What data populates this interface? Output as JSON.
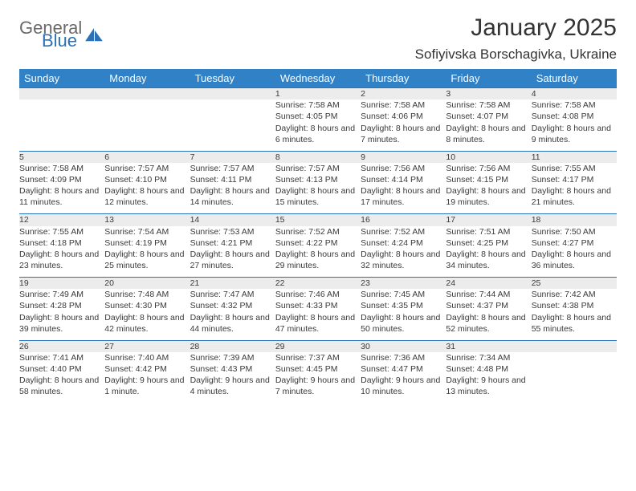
{
  "logo": {
    "word1": "General",
    "word2": "Blue"
  },
  "title": "January 2025",
  "location": "Sofiyivska Borschagivka, Ukraine",
  "colors": {
    "header_bg": "#3081c6",
    "header_text": "#ffffff",
    "daynum_bg": "#ececec",
    "rule": "#2a71b8",
    "logo_gray": "#6a6a6a",
    "logo_blue": "#2a71b8"
  },
  "day_headers": [
    "Sunday",
    "Monday",
    "Tuesday",
    "Wednesday",
    "Thursday",
    "Friday",
    "Saturday"
  ],
  "weeks": [
    {
      "nums": [
        "",
        "",
        "",
        "1",
        "2",
        "3",
        "4"
      ],
      "cells": [
        null,
        null,
        null,
        {
          "sunrise": "7:58 AM",
          "sunset": "4:05 PM",
          "daylight": "8 hours and 6 minutes."
        },
        {
          "sunrise": "7:58 AM",
          "sunset": "4:06 PM",
          "daylight": "8 hours and 7 minutes."
        },
        {
          "sunrise": "7:58 AM",
          "sunset": "4:07 PM",
          "daylight": "8 hours and 8 minutes."
        },
        {
          "sunrise": "7:58 AM",
          "sunset": "4:08 PM",
          "daylight": "8 hours and 9 minutes."
        }
      ]
    },
    {
      "nums": [
        "5",
        "6",
        "7",
        "8",
        "9",
        "10",
        "11"
      ],
      "cells": [
        {
          "sunrise": "7:58 AM",
          "sunset": "4:09 PM",
          "daylight": "8 hours and 11 minutes."
        },
        {
          "sunrise": "7:57 AM",
          "sunset": "4:10 PM",
          "daylight": "8 hours and 12 minutes."
        },
        {
          "sunrise": "7:57 AM",
          "sunset": "4:11 PM",
          "daylight": "8 hours and 14 minutes."
        },
        {
          "sunrise": "7:57 AM",
          "sunset": "4:13 PM",
          "daylight": "8 hours and 15 minutes."
        },
        {
          "sunrise": "7:56 AM",
          "sunset": "4:14 PM",
          "daylight": "8 hours and 17 minutes."
        },
        {
          "sunrise": "7:56 AM",
          "sunset": "4:15 PM",
          "daylight": "8 hours and 19 minutes."
        },
        {
          "sunrise": "7:55 AM",
          "sunset": "4:17 PM",
          "daylight": "8 hours and 21 minutes."
        }
      ]
    },
    {
      "nums": [
        "12",
        "13",
        "14",
        "15",
        "16",
        "17",
        "18"
      ],
      "cells": [
        {
          "sunrise": "7:55 AM",
          "sunset": "4:18 PM",
          "daylight": "8 hours and 23 minutes."
        },
        {
          "sunrise": "7:54 AM",
          "sunset": "4:19 PM",
          "daylight": "8 hours and 25 minutes."
        },
        {
          "sunrise": "7:53 AM",
          "sunset": "4:21 PM",
          "daylight": "8 hours and 27 minutes."
        },
        {
          "sunrise": "7:52 AM",
          "sunset": "4:22 PM",
          "daylight": "8 hours and 29 minutes."
        },
        {
          "sunrise": "7:52 AM",
          "sunset": "4:24 PM",
          "daylight": "8 hours and 32 minutes."
        },
        {
          "sunrise": "7:51 AM",
          "sunset": "4:25 PM",
          "daylight": "8 hours and 34 minutes."
        },
        {
          "sunrise": "7:50 AM",
          "sunset": "4:27 PM",
          "daylight": "8 hours and 36 minutes."
        }
      ]
    },
    {
      "nums": [
        "19",
        "20",
        "21",
        "22",
        "23",
        "24",
        "25"
      ],
      "cells": [
        {
          "sunrise": "7:49 AM",
          "sunset": "4:28 PM",
          "daylight": "8 hours and 39 minutes."
        },
        {
          "sunrise": "7:48 AM",
          "sunset": "4:30 PM",
          "daylight": "8 hours and 42 minutes."
        },
        {
          "sunrise": "7:47 AM",
          "sunset": "4:32 PM",
          "daylight": "8 hours and 44 minutes."
        },
        {
          "sunrise": "7:46 AM",
          "sunset": "4:33 PM",
          "daylight": "8 hours and 47 minutes."
        },
        {
          "sunrise": "7:45 AM",
          "sunset": "4:35 PM",
          "daylight": "8 hours and 50 minutes."
        },
        {
          "sunrise": "7:44 AM",
          "sunset": "4:37 PM",
          "daylight": "8 hours and 52 minutes."
        },
        {
          "sunrise": "7:42 AM",
          "sunset": "4:38 PM",
          "daylight": "8 hours and 55 minutes."
        }
      ]
    },
    {
      "nums": [
        "26",
        "27",
        "28",
        "29",
        "30",
        "31",
        ""
      ],
      "cells": [
        {
          "sunrise": "7:41 AM",
          "sunset": "4:40 PM",
          "daylight": "8 hours and 58 minutes."
        },
        {
          "sunrise": "7:40 AM",
          "sunset": "4:42 PM",
          "daylight": "9 hours and 1 minute."
        },
        {
          "sunrise": "7:39 AM",
          "sunset": "4:43 PM",
          "daylight": "9 hours and 4 minutes."
        },
        {
          "sunrise": "7:37 AM",
          "sunset": "4:45 PM",
          "daylight": "9 hours and 7 minutes."
        },
        {
          "sunrise": "7:36 AM",
          "sunset": "4:47 PM",
          "daylight": "9 hours and 10 minutes."
        },
        {
          "sunrise": "7:34 AM",
          "sunset": "4:48 PM",
          "daylight": "9 hours and 13 minutes."
        },
        null
      ]
    }
  ],
  "labels": {
    "sunrise": "Sunrise:",
    "sunset": "Sunset:",
    "daylight": "Daylight:"
  }
}
